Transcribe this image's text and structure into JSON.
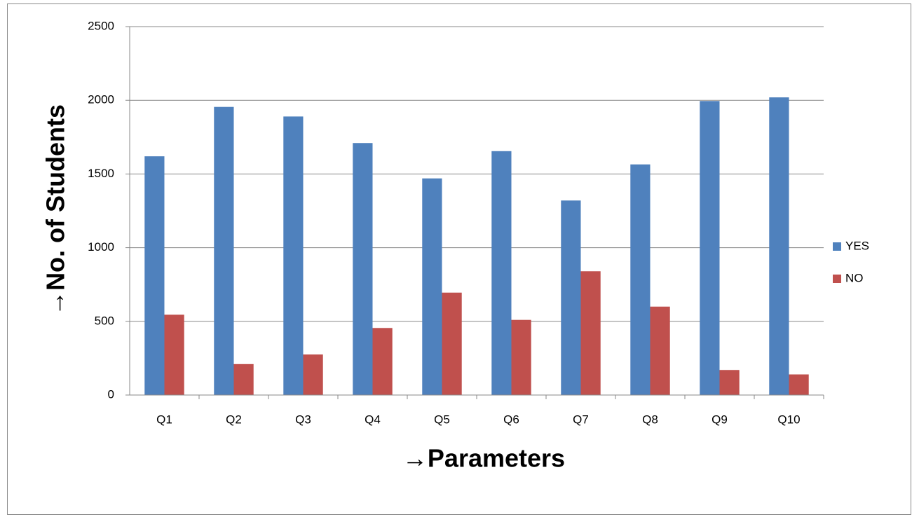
{
  "chart_data": {
    "type": "bar",
    "y_label": "→No. of Students",
    "x_label": "→Parameters",
    "categories": [
      "Q1",
      "Q2",
      "Q3",
      "Q4",
      "Q5",
      "Q6",
      "Q7",
      "Q8",
      "Q9",
      "Q10"
    ],
    "series": [
      {
        "name": "YES",
        "color": "#4f81bd",
        "values": [
          1620,
          1955,
          1890,
          1710,
          1470,
          1655,
          1320,
          1565,
          1995,
          2020
        ]
      },
      {
        "name": "NO",
        "color": "#c0504d",
        "values": [
          545,
          210,
          275,
          455,
          695,
          510,
          840,
          600,
          170,
          140
        ]
      }
    ],
    "ylim": [
      0,
      2500
    ],
    "yticks": [
      0,
      500,
      1000,
      1500,
      2000,
      2500
    ],
    "grid": true,
    "legend": "right"
  }
}
